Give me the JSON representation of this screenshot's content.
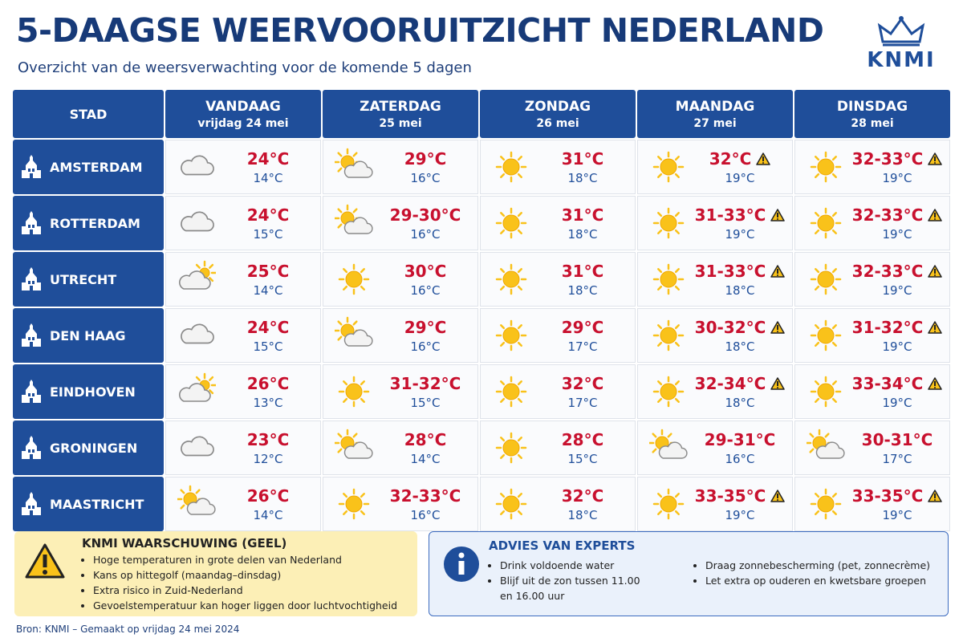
{
  "header": {
    "title": "5-DAAGSE WEERVOORUITZICHT NEDERLAND",
    "subtitle": "Overzicht van de weersverwachting voor de komende 5 dagen",
    "logo": "KNMI"
  },
  "table": {
    "city_header": "STAD",
    "days": [
      {
        "name": "VANDAAG",
        "date": "vrijdag 24 mei"
      },
      {
        "name": "ZATERDAG",
        "date": "25 mei"
      },
      {
        "name": "ZONDAG",
        "date": "26 mei"
      },
      {
        "name": "MAANDAG",
        "date": "27 mei"
      },
      {
        "name": "DINSDAG",
        "date": "28 mei"
      }
    ],
    "rows": [
      {
        "city": "AMSTERDAM",
        "cells": [
          {
            "weather": "cloud",
            "high": "24°C",
            "low": "14°C"
          },
          {
            "weather": "sun-cloud",
            "high": "29°C",
            "low": "16°C"
          },
          {
            "weather": "sun",
            "high": "31°C",
            "low": "18°C"
          },
          {
            "weather": "sun",
            "high": "32°C",
            "low": "19°C",
            "warning": true
          },
          {
            "weather": "sun",
            "high": "32-33°C",
            "low": "19°C",
            "warning": true
          }
        ]
      },
      {
        "city": "ROTTERDAM",
        "cells": [
          {
            "weather": "cloud",
            "high": "24°C",
            "low": "15°C"
          },
          {
            "weather": "sun-cloud",
            "high": "29-30°C",
            "low": "16°C"
          },
          {
            "weather": "sun",
            "high": "31°C",
            "low": "18°C"
          },
          {
            "weather": "sun",
            "high": "31-33°C",
            "low": "19°C",
            "warning": true
          },
          {
            "weather": "sun",
            "high": "32-33°C",
            "low": "19°C",
            "warning": true
          }
        ]
      },
      {
        "city": "UTRECHT",
        "cells": [
          {
            "weather": "cloud-sun",
            "high": "25°C",
            "low": "14°C"
          },
          {
            "weather": "sun",
            "high": "30°C",
            "low": "16°C"
          },
          {
            "weather": "sun",
            "high": "31°C",
            "low": "18°C"
          },
          {
            "weather": "sun",
            "high": "31-33°C",
            "low": "18°C",
            "warning": true
          },
          {
            "weather": "sun",
            "high": "32-33°C",
            "low": "19°C",
            "warning": true
          }
        ]
      },
      {
        "city": "DEN HAAG",
        "cells": [
          {
            "weather": "cloud",
            "high": "24°C",
            "low": "15°C"
          },
          {
            "weather": "sun-cloud",
            "high": "29°C",
            "low": "16°C"
          },
          {
            "weather": "sun",
            "high": "29°C",
            "low": "17°C"
          },
          {
            "weather": "sun",
            "high": "30-32°C",
            "low": "18°C",
            "warning": true
          },
          {
            "weather": "sun",
            "high": "31-32°C",
            "low": "19°C",
            "warning": true
          }
        ]
      },
      {
        "city": "EINDHOVEN",
        "cells": [
          {
            "weather": "cloud-sun",
            "high": "26°C",
            "low": "13°C"
          },
          {
            "weather": "sun",
            "high": "31-32°C",
            "low": "15°C"
          },
          {
            "weather": "sun",
            "high": "32°C",
            "low": "17°C"
          },
          {
            "weather": "sun",
            "high": "32-34°C",
            "low": "18°C",
            "warning": true
          },
          {
            "weather": "sun",
            "high": "33-34°C",
            "low": "19°C",
            "warning": true
          }
        ]
      },
      {
        "city": "GRONINGEN",
        "cells": [
          {
            "weather": "cloud",
            "high": "23°C",
            "low": "12°C"
          },
          {
            "weather": "sun-cloud",
            "high": "28°C",
            "low": "14°C"
          },
          {
            "weather": "sun",
            "high": "28°C",
            "low": "15°C"
          },
          {
            "weather": "sun-cloud",
            "high": "29-31°C",
            "low": "16°C"
          },
          {
            "weather": "sun-cloud",
            "high": "30-31°C",
            "low": "17°C"
          }
        ]
      },
      {
        "city": "MAASTRICHT",
        "cells": [
          {
            "weather": "sun-cloud",
            "high": "26°C",
            "low": "14°C"
          },
          {
            "weather": "sun",
            "high": "32-33°C",
            "low": "16°C"
          },
          {
            "weather": "sun",
            "high": "32°C",
            "low": "18°C"
          },
          {
            "weather": "sun",
            "high": "33-35°C",
            "low": "19°C",
            "warning": true
          },
          {
            "weather": "sun",
            "high": "33-35°C",
            "low": "19°C",
            "warning": true
          }
        ]
      }
    ]
  },
  "warning": {
    "title": "KNMI WAARSCHUWING (GEEL)",
    "items": [
      "Hoge temperaturen in grote delen van Nederland",
      "Kans op hittegolf (maandag–dinsdag)",
      "Extra risico in Zuid-Nederland",
      "Gevoelstemperatuur kan hoger liggen door luchtvochtigheid"
    ]
  },
  "advice": {
    "title": "ADVIES VAN EXPERTS",
    "items": [
      "Drink voldoende water",
      "Blijf uit de zon tussen 11.00 en 16.00 uur",
      "Draag zonnebescherming (pet, zonnecrème)",
      "Let extra op ouderen en kwetsbare groepen"
    ]
  },
  "footer": "Bron: KNMI – Gemaakt op vrijdag 24 mei 2024"
}
